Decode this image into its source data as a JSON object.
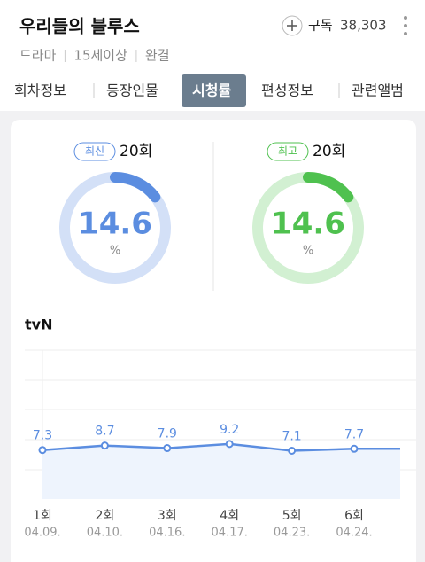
{
  "header": {
    "title": "우리들의 블루스",
    "subscribe": "구독",
    "subscribers": "38,303",
    "meta": [
      "드라마",
      "15세이상",
      "완결"
    ]
  },
  "tabs": [
    "회차정보",
    "등장인물",
    "시청률",
    "편성정보",
    "관련앨범"
  ],
  "active_tab": 2,
  "ratings": [
    {
      "badge": "최신",
      "episode": "20회",
      "value": 14.6,
      "unit": "%",
      "color": "#5b8de0",
      "track": "#d3e0f7"
    },
    {
      "badge": "최고",
      "episode": "20회",
      "value": 14.6,
      "unit": "%",
      "color": "#4fc14f",
      "track": "#d2f0d2"
    }
  ],
  "chart_data": {
    "type": "line",
    "title": "tvN",
    "categories": [
      "1회",
      "2회",
      "3회",
      "4회",
      "5회",
      "6회"
    ],
    "dates": [
      "04.09.",
      "04.10.",
      "04.16.",
      "04.17.",
      "04.23.",
      "04.24."
    ],
    "series": [
      {
        "name": "tvN",
        "color": "#5b8de0",
        "values": [
          7.3,
          8.7,
          7.9,
          9.2,
          7.1,
          7.7
        ]
      }
    ],
    "grid": true
  }
}
